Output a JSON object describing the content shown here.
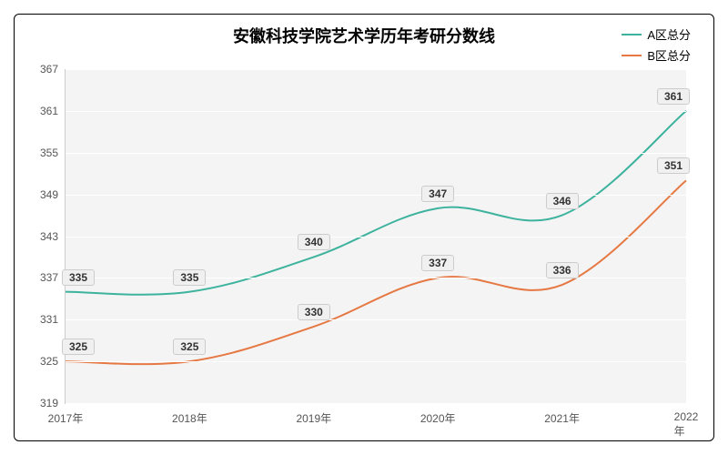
{
  "chart": {
    "type": "line",
    "title": "安徽科技学院艺术学历年考研分数线",
    "title_fontsize": 18,
    "title_fontweight": "bold",
    "background_color": "#ffffff",
    "plot_background_color": "#f4f4f4",
    "grid_color": "#ffffff",
    "border_color": "#000000",
    "axis_color": "#cccccc",
    "label_color": "#555555",
    "data_label_bg": "#f0f0f0",
    "data_label_border": "#cccccc",
    "categories": [
      "2017年",
      "2018年",
      "2019年",
      "2020年",
      "2021年",
      "2022年"
    ],
    "ylim": [
      319,
      367
    ],
    "ytick_step": 6,
    "yticks": [
      319,
      325,
      331,
      337,
      343,
      349,
      355,
      361,
      367
    ],
    "label_fontsize": 12,
    "data_label_fontsize": 12,
    "series": [
      {
        "name": "A区总分",
        "color": "#3db39e",
        "values": [
          335,
          335,
          340,
          347,
          346,
          361
        ],
        "line_width": 2,
        "label_offset_y": -16
      },
      {
        "name": "B区总分",
        "color": "#e67843",
        "values": [
          325,
          325,
          330,
          337,
          336,
          351
        ],
        "line_width": 2,
        "label_offset_y": -16
      }
    ],
    "legend": {
      "position": "top-right",
      "fontsize": 13
    }
  }
}
